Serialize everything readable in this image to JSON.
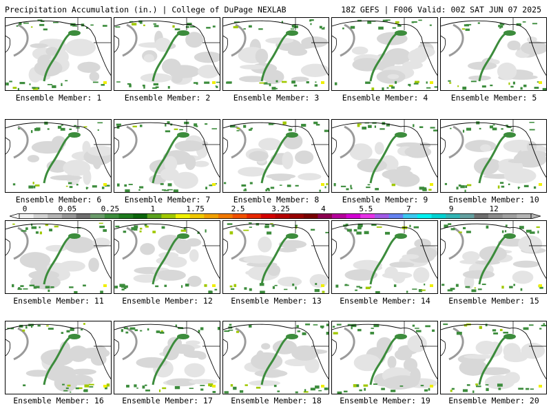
{
  "header": {
    "title_left": "Precipitation Accumulation (in.) | College of DuPage NEXLAB",
    "title_right": "18Z GEFS | F006 Valid: 00Z SAT JUN 07 2025"
  },
  "panels": [
    {
      "label": "Ensemble Member: 1"
    },
    {
      "label": "Ensemble Member: 2"
    },
    {
      "label": "Ensemble Member: 3"
    },
    {
      "label": "Ensemble Member: 4"
    },
    {
      "label": "Ensemble Member: 5"
    },
    {
      "label": "Ensemble Member: 6"
    },
    {
      "label": "Ensemble Member: 7"
    },
    {
      "label": "Ensemble Member: 8"
    },
    {
      "label": "Ensemble Member: 9"
    },
    {
      "label": "Ensemble Member: 10"
    },
    {
      "label": "Ensemble Member: 11"
    },
    {
      "label": "Ensemble Member: 12"
    },
    {
      "label": "Ensemble Member: 13"
    },
    {
      "label": "Ensemble Member: 14"
    },
    {
      "label": "Ensemble Member: 15"
    },
    {
      "label": "Ensemble Member: 16"
    },
    {
      "label": "Ensemble Member: 17"
    },
    {
      "label": "Ensemble Member: 18"
    },
    {
      "label": "Ensemble Member: 19"
    },
    {
      "label": "Ensemble Member: 20"
    }
  ],
  "colorbar": {
    "labels": [
      "0",
      "0.05",
      "0.25",
      "1",
      "1.75",
      "2.5",
      "3.25",
      "4",
      "5.5",
      "7",
      "9",
      "12"
    ],
    "colors": [
      "#f0f0f0",
      "#d2d2d2",
      "#b4b4b4",
      "#969696",
      "#6e6e6e",
      "#6a9a6a",
      "#3c8c3c",
      "#1e7a1e",
      "#0a640a",
      "#5aa01e",
      "#a0c800",
      "#f0f000",
      "#f0c800",
      "#f0a000",
      "#f07800",
      "#f05000",
      "#e62800",
      "#d20000",
      "#b40000",
      "#960000",
      "#780000",
      "#8c0050",
      "#b4009a",
      "#d200d2",
      "#e632e6",
      "#a05ae6",
      "#6482f0",
      "#3cc8f0",
      "#00f0f0",
      "#00d2d2",
      "#32b4b4",
      "#64a0a0",
      "#6e6e6e",
      "#8c8c8c",
      "#a0a0a0",
      "#b4b4b4"
    ]
  }
}
